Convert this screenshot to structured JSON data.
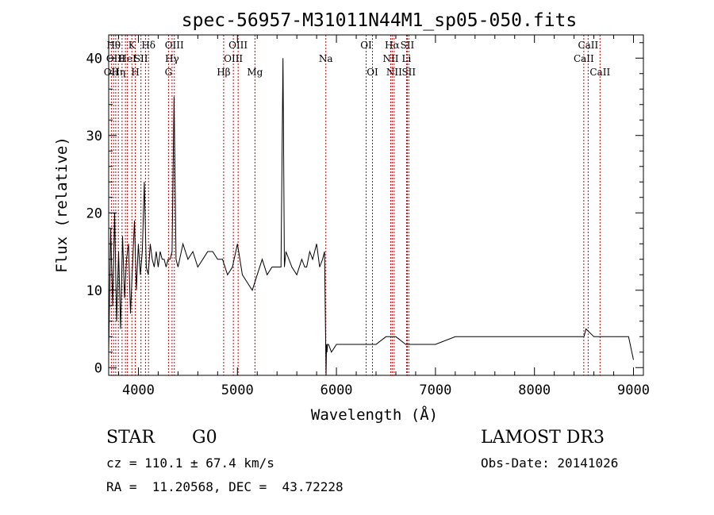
{
  "chart_data": {
    "type": "line",
    "title": "spec-56957-M31011N44M1_sp05-050.fits",
    "xlabel": "Wavelength (Å)",
    "ylabel": "Flux (relative)",
    "xlim": [
      3700,
      9100
    ],
    "ylim": [
      -1,
      43
    ],
    "xticks": [
      "4000",
      "5000",
      "6000",
      "7000",
      "8000",
      "9000"
    ],
    "xtick_values": [
      4000,
      5000,
      6000,
      7000,
      8000,
      9000
    ],
    "yticks": [
      "0",
      "10",
      "20",
      "30",
      "40"
    ],
    "ytick_values": [
      0,
      10,
      20,
      30,
      40
    ],
    "grid": false,
    "series": [
      {
        "x": [
          3700,
          3720,
          3740,
          3760,
          3780,
          3800,
          3820,
          3840,
          3860,
          3880,
          3900,
          3920,
          3940,
          3960,
          3980,
          4000,
          4020,
          4040,
          4060,
          4080,
          4100,
          4120,
          4140,
          4160,
          4180,
          4200,
          4220,
          4240,
          4260,
          4280,
          4300,
          4320,
          4340,
          4360,
          4380,
          4400,
          4450,
          4500,
          4550,
          4600,
          4650,
          4700,
          4750,
          4800,
          4850,
          4900,
          4950,
          5000,
          5050,
          5100,
          5150,
          5200,
          5250,
          5300,
          5350,
          5400,
          5440,
          5460,
          5475,
          5490,
          5520,
          5550,
          5600,
          5650,
          5680,
          5700,
          5730,
          5760,
          5800,
          5830,
          5860,
          5880,
          5890,
          5895,
          5900,
          5905,
          5910,
          5920,
          5950,
          6000,
          6100,
          6200,
          6300,
          6400,
          6500,
          6600,
          6700,
          6800,
          6900,
          7000,
          7200,
          7400,
          7600,
          7800,
          8000,
          8200,
          8400,
          8500,
          8520,
          8600,
          8700,
          8800,
          8900,
          8950,
          9000
        ],
        "y": [
          2,
          18,
          8,
          20,
          6,
          15,
          5,
          17,
          9,
          14,
          16,
          7,
          13,
          19,
          10,
          16,
          12,
          15,
          24,
          13,
          12,
          16,
          14,
          13,
          15,
          13,
          15,
          14,
          14,
          13,
          14,
          14,
          15,
          35,
          14,
          13,
          16,
          14,
          15,
          13,
          14,
          15,
          15,
          14,
          14,
          12,
          13,
          16,
          12,
          11,
          10,
          12,
          14,
          12,
          13,
          13,
          13,
          40,
          13,
          15,
          14,
          13,
          12,
          14,
          13,
          13,
          15,
          14,
          16,
          13,
          14,
          15,
          5,
          -1,
          3,
          2,
          3,
          3,
          2,
          3,
          3,
          3,
          3,
          3,
          4,
          4,
          3,
          3,
          3,
          3,
          4,
          4,
          4,
          4,
          4,
          4,
          4,
          4,
          5,
          4,
          4,
          4,
          4,
          4,
          1
        ]
      }
    ],
    "line_markers": [
      {
        "wavelength": 3727,
        "label": "OII",
        "row": 3
      },
      {
        "wavelength": 3750,
        "label": "Hθ",
        "row": 1
      },
      {
        "wavelength": 3771,
        "label": "OIII",
        "row": 2
      },
      {
        "wavelength": 3798,
        "label": "Hη",
        "row": 3
      },
      {
        "wavelength": 3835,
        "label": "",
        "row": 0
      },
      {
        "wavelength": 3869,
        "label": "",
        "row": 0
      },
      {
        "wavelength": 3889,
        "label": "HeI",
        "row": 2
      },
      {
        "wavelength": 3934,
        "label": "K",
        "row": 1
      },
      {
        "wavelength": 3969,
        "label": "H",
        "row": 3
      },
      {
        "wavelength": 4026,
        "label": "SII",
        "row": 2
      },
      {
        "wavelength": 4072,
        "label": "",
        "row": 0
      },
      {
        "wavelength": 4102,
        "label": "Hδ",
        "row": 1
      },
      {
        "wavelength": 4304,
        "label": "G",
        "row": 3
      },
      {
        "wavelength": 4340,
        "label": "Hγ",
        "row": 2
      },
      {
        "wavelength": 4363,
        "label": "OIII",
        "row": 1
      },
      {
        "wavelength": 4861,
        "label": "Hβ",
        "row": 3
      },
      {
        "wavelength": 4959,
        "label": "OIII",
        "row": 2
      },
      {
        "wavelength": 5007,
        "label": "OIII",
        "row": 1
      },
      {
        "wavelength": 5177,
        "label": "Mg",
        "row": 3
      },
      {
        "wavelength": 5893,
        "label": "Na",
        "row": 2
      },
      {
        "wavelength": 6300,
        "label": "OI",
        "row": 1
      },
      {
        "wavelength": 6364,
        "label": "OI",
        "row": 3
      },
      {
        "wavelength": 6548,
        "label": "NII",
        "row": 2
      },
      {
        "wavelength": 6563,
        "label": "Hα",
        "row": 1
      },
      {
        "wavelength": 6583,
        "label": "NII",
        "row": 3
      },
      {
        "wavelength": 6708,
        "label": "Li",
        "row": 2
      },
      {
        "wavelength": 6716,
        "label": "SII",
        "row": 1
      },
      {
        "wavelength": 6731,
        "label": "SII",
        "row": 3
      },
      {
        "wavelength": 8498,
        "label": "CaII",
        "row": 2
      },
      {
        "wavelength": 8542,
        "label": "CaII",
        "row": 1
      },
      {
        "wavelength": 8662,
        "label": "CaII",
        "row": 3
      }
    ]
  },
  "info": {
    "object_class": "STAR",
    "subclass": "G0",
    "survey": "LAMOST DR3",
    "cz": "cz = 110.1 ± 67.4 km/s",
    "obs_date": "Obs-Date: 20141026",
    "coords": "RA =  11.20568, DEC =  43.72228"
  },
  "colors": {
    "spectrum": "#000000",
    "marker": "#cc0000"
  }
}
